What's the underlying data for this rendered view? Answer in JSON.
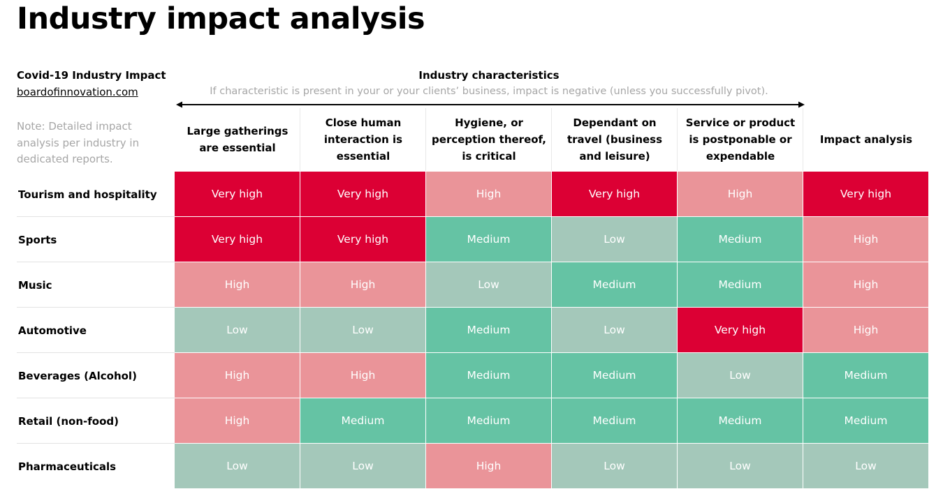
{
  "title": "Industry impact analysis",
  "source": {
    "title": "Covid-19 Industry Impact",
    "link": "boardofinnovation.com"
  },
  "note": "Note: Detailed impact analysis per industry in dedicated reports.",
  "characteristics": {
    "title": "Industry characteristics",
    "subtitle": "If characteristic is present in your or your clients’ business, impact is negative (unless you successfully pivot)."
  },
  "columns": [
    "Large gatherings are essential",
    "Close human interaction is essential",
    "Hygiene, or perception thereof, is critical",
    "Dependant on travel (business and leisure)",
    "Service or product is postponable or expendable",
    "Impact analysis"
  ],
  "rows": [
    {
      "industry": "Tourism and hospitality",
      "values": [
        "Very high",
        "Very high",
        "High",
        "Very high",
        "High",
        "Very high"
      ]
    },
    {
      "industry": "Sports",
      "values": [
        "Very high",
        "Very high",
        "Medium",
        "Low",
        "Medium",
        "High"
      ]
    },
    {
      "industry": "Music",
      "values": [
        "High",
        "High",
        "Low",
        "Medium",
        "Medium",
        "High"
      ]
    },
    {
      "industry": "Automotive",
      "values": [
        "Low",
        "Low",
        "Medium",
        "Low",
        "Very high",
        "High"
      ]
    },
    {
      "industry": "Beverages (Alcohol)",
      "values": [
        "High",
        "High",
        "Medium",
        "Medium",
        "Low",
        "Medium"
      ]
    },
    {
      "industry": "Retail (non-food)",
      "values": [
        "High",
        "Medium",
        "Medium",
        "Medium",
        "Medium",
        "Medium"
      ]
    },
    {
      "industry": "Pharmaceuticals",
      "values": [
        "Low",
        "Low",
        "High",
        "Low",
        "Low",
        "Low"
      ]
    }
  ],
  "level_colors": {
    "Very high": "#dc0034",
    "High": "#ea9499",
    "Medium": "#65c3a4",
    "Low": "#a4c8ba"
  }
}
